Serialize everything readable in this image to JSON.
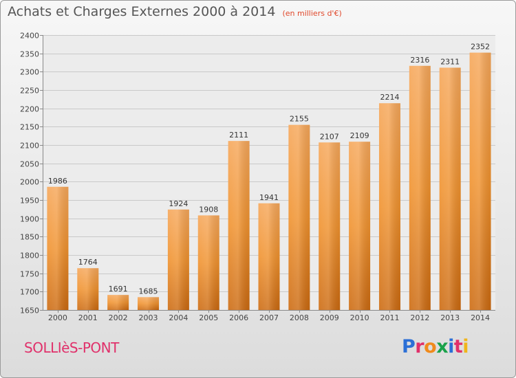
{
  "header": {
    "title": "Achats et Charges Externes 2000 à 2014",
    "subtitle": "(en milliers d'€)"
  },
  "footer": {
    "commune": "SOLLIèS-PONT",
    "logo_letters": [
      "P",
      "r",
      "o",
      "x",
      "i",
      "t",
      "i"
    ],
    "logo_colors": [
      "#2b6fd6",
      "#e0306a",
      "#f08a1c",
      "#1aa24a",
      "#2b6fd6",
      "#e0306a",
      "#f0b51c"
    ]
  },
  "chart_data": {
    "type": "bar",
    "title": "Achats et Charges Externes 2000 à 2014",
    "subtitle": "(en milliers d'€)",
    "categories": [
      "2000",
      "2001",
      "2002",
      "2003",
      "2004",
      "2005",
      "2006",
      "2007",
      "2008",
      "2009",
      "2010",
      "2011",
      "2012",
      "2013",
      "2014"
    ],
    "values": [
      1986,
      1764,
      1691,
      1685,
      1924,
      1908,
      2111,
      1941,
      2155,
      2107,
      2109,
      2214,
      2316,
      2311,
      2352
    ],
    "ylim": [
      1650,
      2400
    ],
    "yticks": [
      1650,
      1700,
      1750,
      1800,
      1850,
      1900,
      1950,
      2000,
      2050,
      2100,
      2150,
      2200,
      2250,
      2300,
      2350,
      2400
    ],
    "grid": true,
    "bar_color": "#f0922e",
    "data_labels": true
  }
}
